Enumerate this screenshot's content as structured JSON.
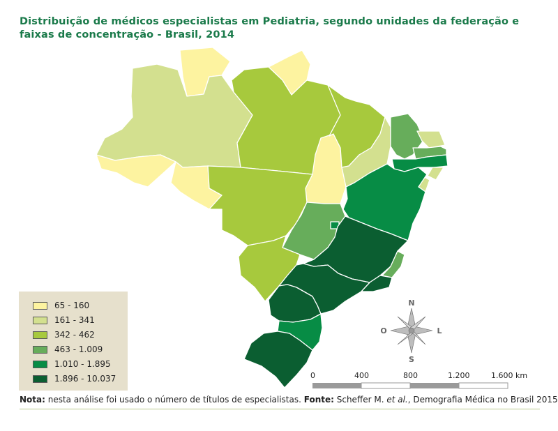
{
  "title": "Distribuição de médicos especialistas em Pediatria, segundo unidades da federação e faixas de concentração - Brasil, 2014",
  "colors": {
    "class1": "#fdf3a0",
    "class2": "#d3e08f",
    "class3": "#a7c93d",
    "class4": "#67ad5b",
    "class5": "#078c45",
    "class6": "#0b5e31",
    "title": "#1a7a4a",
    "legend_bg": "#e6e0cc"
  },
  "legend": [
    {
      "label": "65 - 160",
      "color": "#fdf3a0"
    },
    {
      "label": "161 - 341",
      "color": "#d3e08f"
    },
    {
      "label": "342 - 462",
      "color": "#a7c93d"
    },
    {
      "label": "463 - 1.009",
      "color": "#67ad5b"
    },
    {
      "label": "1.010 - 1.895",
      "color": "#078c45"
    },
    {
      "label": "1.896 - 10.037",
      "color": "#0b5e31"
    }
  ],
  "compass": {
    "n": "N",
    "s": "S",
    "e": "L",
    "w": "O"
  },
  "scale": {
    "labels": [
      "0",
      "400",
      "800",
      "1.200",
      "1.600 km"
    ]
  },
  "note": {
    "nota_label": "Nota:",
    "nota_text": " nesta análise foi usado o número de títulos de especialistas. ",
    "fonte_label": "Fonte:",
    "fonte_text_a": " Scheffer M. ",
    "fonte_italic": "et al.",
    "fonte_text_b": ", Demografia Médica no Brasil 2015."
  }
}
